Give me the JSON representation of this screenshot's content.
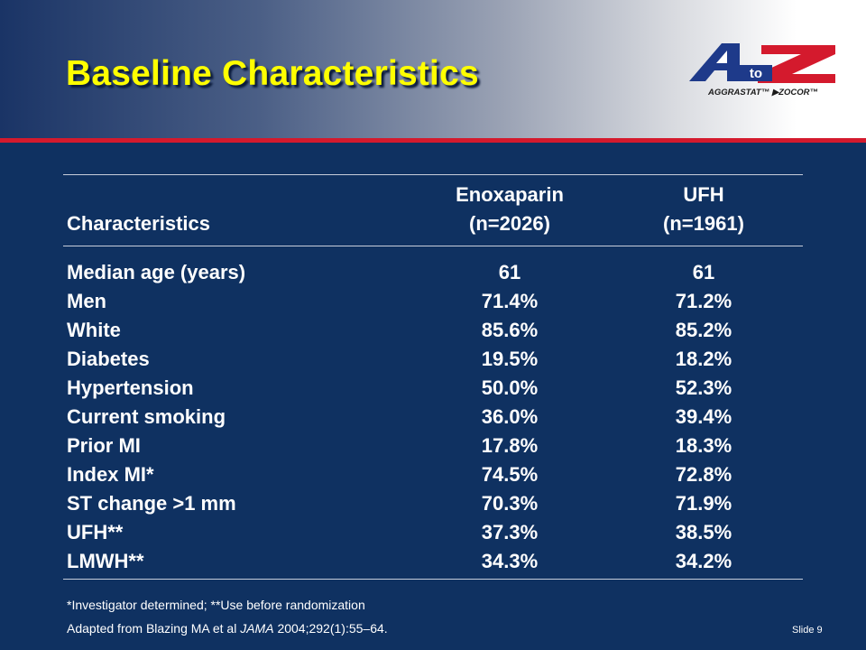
{
  "slide": {
    "title": "Baseline Characteristics",
    "slide_number": "Slide 9"
  },
  "logo": {
    "letter_a": "A",
    "to": "to",
    "letter_z": "Z",
    "tagline": "AGGRASTAT™ ▶ZOCOR™"
  },
  "table": {
    "headers": {
      "characteristics": "Characteristics",
      "enox_name": "Enoxaparin",
      "enox_n": "(n=2026)",
      "ufh_name": "UFH",
      "ufh_n": "(n=1961)"
    },
    "rows": [
      {
        "label": "Median age (years)",
        "enoxaparin": "61",
        "ufh": "61"
      },
      {
        "label": "Men",
        "enoxaparin": "71.4%",
        "ufh": "71.2%"
      },
      {
        "label": "White",
        "enoxaparin": "85.6%",
        "ufh": "85.2%"
      },
      {
        "label": "Diabetes",
        "enoxaparin": "19.5%",
        "ufh": "18.2%"
      },
      {
        "label": "Hypertension",
        "enoxaparin": "50.0%",
        "ufh": "52.3%"
      },
      {
        "label": "Current smoking",
        "enoxaparin": "36.0%",
        "ufh": "39.4%"
      },
      {
        "label": "Prior MI",
        "enoxaparin": "17.8%",
        "ufh": "18.3%"
      },
      {
        "label": "Index MI*",
        "enoxaparin": "74.5%",
        "ufh": "72.8%"
      },
      {
        "label": "ST change >1 mm",
        "enoxaparin": "70.3%",
        "ufh": "71.9%"
      },
      {
        "label": "UFH**",
        "enoxaparin": "37.3%",
        "ufh": "38.5%"
      },
      {
        "label": "LMWH**",
        "enoxaparin": "34.3%",
        "ufh": "34.2%"
      }
    ]
  },
  "footnote": "*Investigator determined; **Use before randomization",
  "citation": {
    "before": "Adapted from Blazing MA et al ",
    "journal": "JAMA",
    "after": " 2004;292(1):55–64."
  },
  "colors": {
    "background": "#0f3161",
    "title": "#ffff00",
    "accent_red": "#d41a2d",
    "logo_blue": "#1e3a8a",
    "logo_red": "#d41a2d"
  }
}
